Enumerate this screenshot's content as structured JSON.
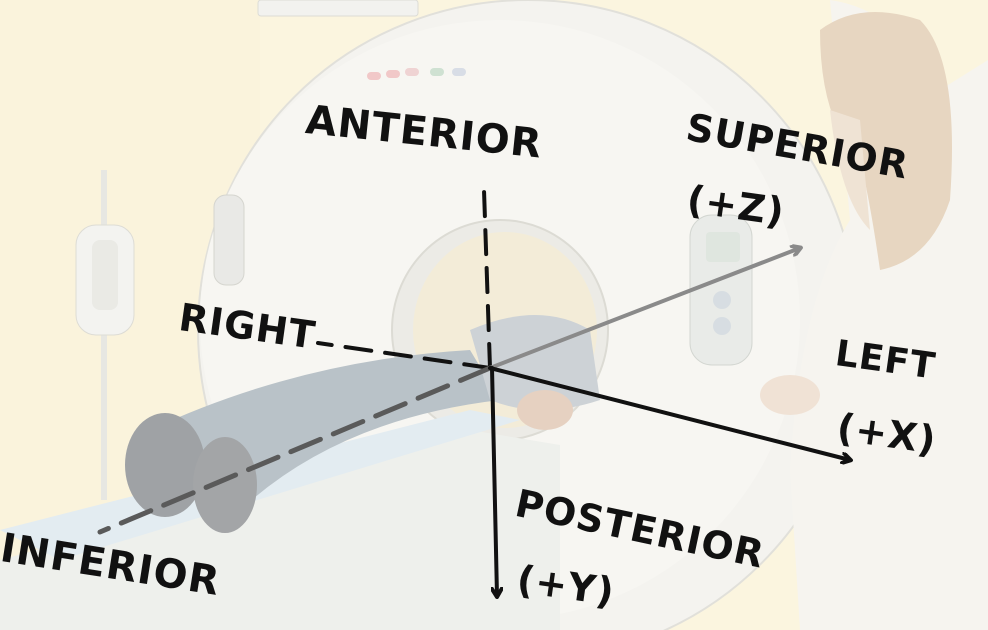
{
  "labels": {
    "anterior": "ANTERIOR",
    "superior": "SUPERIOR",
    "superior_axis": "(+Z)",
    "right": "RIGHT",
    "left": "LEFT",
    "left_axis": "(+X)",
    "posterior": "POSTERIOR",
    "posterior_axis": "(+Y)",
    "inferior": "INFERIOR"
  },
  "colors": {
    "ink": "#111111",
    "grey_axis": "#8a8a8a"
  }
}
